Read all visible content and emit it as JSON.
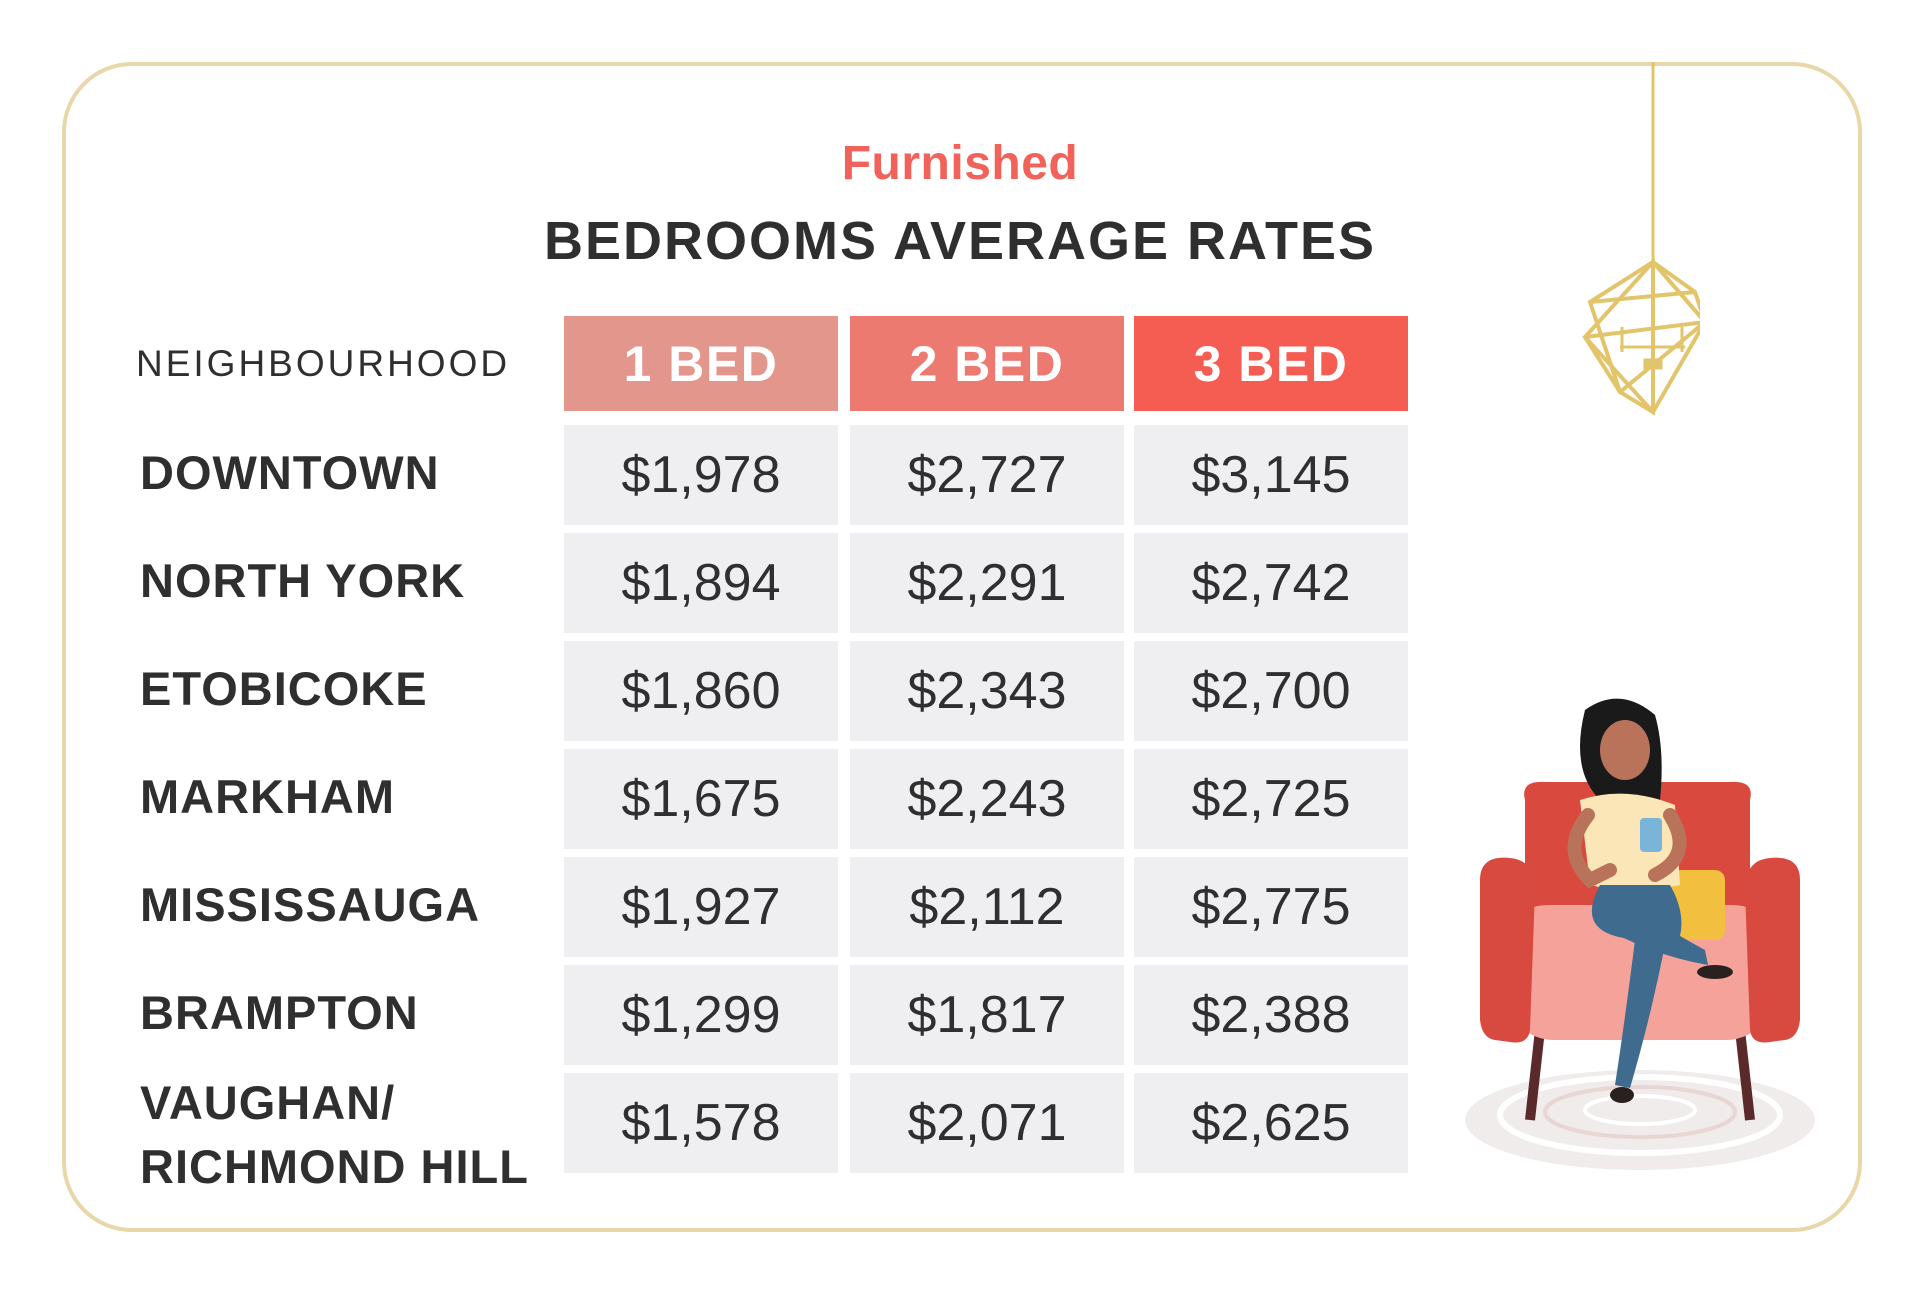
{
  "chart_data": {
    "type": "table",
    "subtitle": "Furnished",
    "title": "BEDROOMS AVERAGE RATES",
    "row_header_label": "NEIGHBOURHOOD",
    "columns": [
      "1 BED",
      "2 BED",
      "3 BED"
    ],
    "rows": [
      {
        "name": "DOWNTOWN",
        "values": [
          "$1,978",
          "$2,727",
          "$3,145"
        ]
      },
      {
        "name": "NORTH YORK",
        "values": [
          "$1,894",
          "$2,291",
          "$2,742"
        ]
      },
      {
        "name": "ETOBICOKE",
        "values": [
          "$1,860",
          "$2,343",
          "$2,700"
        ]
      },
      {
        "name": "MARKHAM",
        "values": [
          "$1,675",
          "$2,243",
          "$2,725"
        ]
      },
      {
        "name": "MISSISSAUGA",
        "values": [
          "$1,927",
          "$2,112",
          "$2,775"
        ]
      },
      {
        "name": "BRAMPTON",
        "values": [
          "$1,299",
          "$1,817",
          "$2,388"
        ]
      },
      {
        "name": "VAUGHAN/\nRICHMOND HILL",
        "values": [
          "$1,578",
          "$2,071",
          "$2,625"
        ]
      }
    ]
  },
  "colors": {
    "accent": "#f0625a",
    "header_1": "#e3968c",
    "header_2": "#ec7a70",
    "header_3": "#f55d52",
    "cell_bg": "#efeff1",
    "text": "#2f2f2f",
    "frame": "#e8d7a8",
    "gold": "#e2c46a"
  },
  "icons": [
    "chandelier-icon",
    "woman-in-armchair-illustration"
  ]
}
